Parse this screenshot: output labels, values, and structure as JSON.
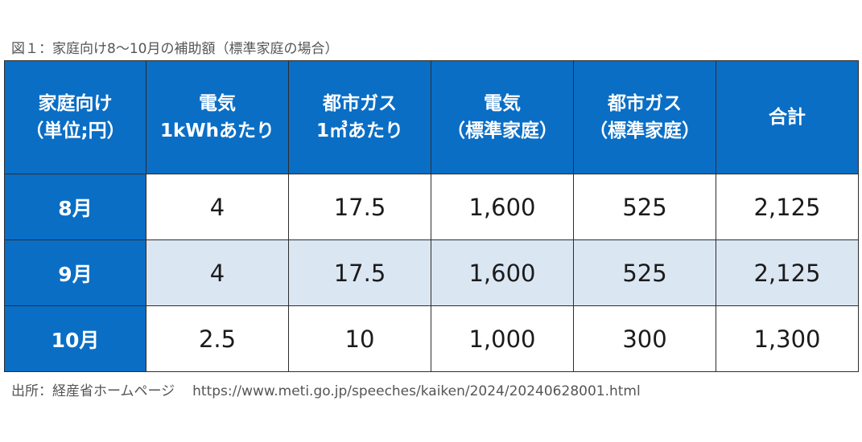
{
  "caption": "図１：家庭向け8～10月の補助額（標準家庭の場合）",
  "table": {
    "headers": [
      [
        "家庭向け",
        "（単位;円）"
      ],
      [
        "電気",
        "1kWhあたり"
      ],
      [
        "都市ガス",
        "1㎥あたり"
      ],
      [
        "電気",
        "（標準家庭）"
      ],
      [
        "都市ガス",
        "（標準家庭）"
      ],
      [
        "合計"
      ]
    ],
    "rows": [
      {
        "label": "8月",
        "values": [
          "4",
          "17.5",
          "1,600",
          "525",
          "2,125"
        ]
      },
      {
        "label": "9月",
        "values": [
          "4",
          "17.5",
          "1,600",
          "525",
          "2,125"
        ]
      },
      {
        "label": "10月",
        "values": [
          "2.5",
          "10",
          "1,000",
          "300",
          "1,300"
        ]
      }
    ]
  },
  "source": {
    "label": "出所：経産省ホームページ",
    "url": "https://www.meti.go.jp/speeches/kaiken/2024/20240628001.html"
  },
  "colors": {
    "header_bg": "#0a6ec5",
    "header_text": "#ffffff",
    "alt_row_bg": "#dbe6f3",
    "border": "#2d2d2d"
  }
}
